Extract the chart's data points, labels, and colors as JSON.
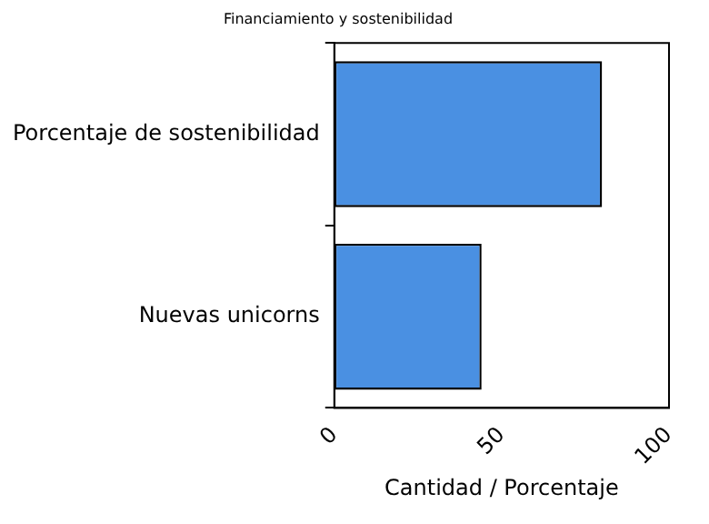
{
  "chart_data": {
    "type": "bar",
    "orientation": "horizontal",
    "title": "Financiamiento y sostenibilidad",
    "xlabel": "Cantidad / Porcentaje",
    "categories": [
      "Porcentaje de sostenibilidad",
      "Nuevas unicorns"
    ],
    "values": [
      80,
      44
    ],
    "color": "#4a90e2",
    "xlim": [
      0,
      100
    ],
    "xticks": [
      0,
      50,
      100
    ],
    "grid": false,
    "legend": false
  }
}
